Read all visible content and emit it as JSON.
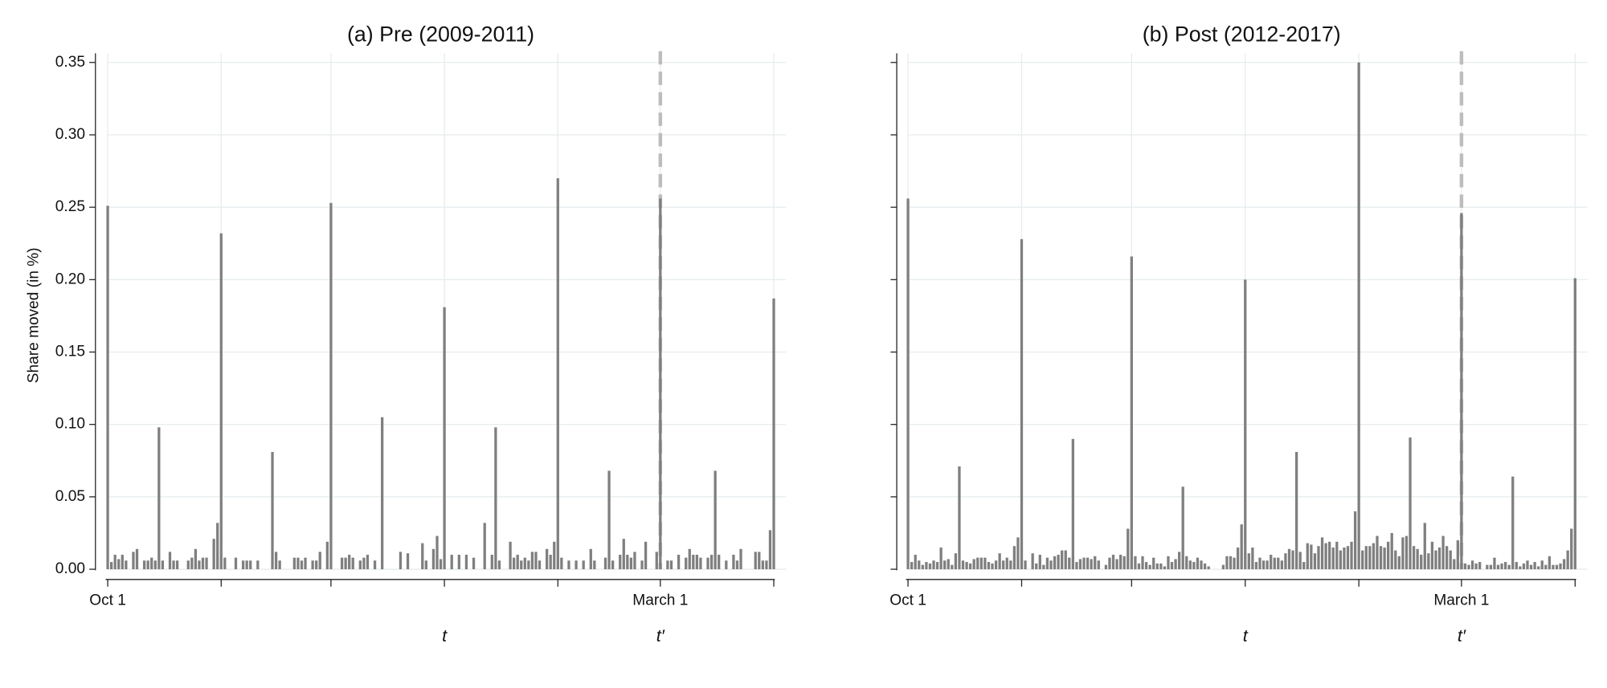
{
  "chart_data": [
    {
      "type": "bar",
      "title": "(a) Pre (2009-2011)",
      "y_label": "Share moved (in %)",
      "color": "#7f7f7f",
      "grid": true,
      "x": [
        0,
        1,
        2,
        3,
        4,
        5,
        6,
        7,
        8,
        9,
        10,
        11,
        12,
        13,
        14,
        15,
        16,
        17,
        18,
        19,
        20,
        21,
        22,
        23,
        24,
        25,
        26,
        27,
        28,
        29,
        30,
        31,
        32,
        33,
        34,
        35,
        36,
        37,
        38,
        39,
        40,
        41,
        42,
        43,
        44,
        45,
        46,
        47,
        48,
        49,
        50,
        51,
        52,
        53,
        54,
        55,
        56,
        57,
        58,
        59,
        60,
        61,
        62,
        63,
        64,
        65,
        66,
        67,
        68,
        69,
        70,
        71,
        72,
        73,
        74,
        75,
        76,
        77,
        78,
        79,
        80,
        81,
        82,
        83,
        84,
        85,
        86,
        87,
        88,
        89,
        90,
        91,
        92,
        93,
        94,
        95,
        96,
        97,
        98,
        99,
        100,
        101,
        102,
        103,
        104,
        105,
        106,
        107,
        108,
        109,
        110,
        111,
        112,
        113,
        114,
        115,
        116,
        117,
        118,
        119,
        120,
        121,
        122,
        123,
        124,
        125,
        126,
        127,
        128,
        129,
        130,
        131,
        132,
        133,
        134,
        135,
        136,
        137,
        138,
        139,
        140,
        141,
        142,
        143,
        144,
        145,
        146,
        147,
        148,
        149,
        150,
        151,
        152,
        153,
        154,
        155,
        156,
        157,
        158,
        159,
        160,
        161,
        162,
        163,
        164,
        165,
        166,
        167,
        168,
        169,
        170,
        171,
        172,
        173,
        174,
        175,
        176,
        177,
        178,
        179,
        180,
        181,
        182
      ],
      "values": [
        0.251,
        0.005,
        0.01,
        0.007,
        0.01,
        0.006,
        0,
        0.012,
        0.014,
        0,
        0.006,
        0.006,
        0.008,
        0.006,
        0.098,
        0.006,
        0,
        0.012,
        0.006,
        0.006,
        0,
        0,
        0.006,
        0.008,
        0.014,
        0.006,
        0.008,
        0.008,
        0,
        0.021,
        0.032,
        0.232,
        0.008,
        0,
        0,
        0.008,
        0,
        0.006,
        0.006,
        0.006,
        0,
        0.006,
        0,
        0,
        0,
        0.081,
        0.012,
        0.006,
        0,
        0,
        0,
        0.008,
        0.008,
        0.006,
        0.008,
        0,
        0.006,
        0.006,
        0.012,
        0,
        0.019,
        0.253,
        0,
        0,
        0.008,
        0.008,
        0.01,
        0.008,
        0,
        0.006,
        0.008,
        0.01,
        0,
        0.006,
        0,
        0.105,
        0,
        0,
        0,
        0,
        0.012,
        0,
        0.011,
        0,
        0,
        0,
        0.018,
        0.006,
        0,
        0.014,
        0.023,
        0.007,
        0.181,
        0,
        0.01,
        0,
        0.01,
        0,
        0.01,
        0,
        0.008,
        0,
        0,
        0.032,
        0,
        0.01,
        0.098,
        0.006,
        0,
        0,
        0.019,
        0.008,
        0.01,
        0.006,
        0.008,
        0.006,
        0.012,
        0.012,
        0.006,
        0,
        0.014,
        0.01,
        0.019,
        0.27,
        0.008,
        0,
        0.006,
        0,
        0.006,
        0,
        0.006,
        0,
        0.014,
        0.006,
        0,
        0,
        0.008,
        0.068,
        0.006,
        0,
        0.01,
        0.021,
        0.01,
        0.008,
        0.012,
        0,
        0.006,
        0.019,
        0,
        0,
        0.012,
        0.256,
        0,
        0.006,
        0.006,
        0,
        0.01,
        0,
        0.008,
        0.014,
        0.01,
        0.01,
        0.008,
        0,
        0.008,
        0.01,
        0.068,
        0.01,
        0,
        0.006,
        0,
        0.01,
        0.006,
        0.014,
        0,
        0,
        0,
        0.012,
        0.012,
        0.006,
        0.006,
        0.027,
        0.187
      ],
      "xlim": [
        0,
        182
      ],
      "xticks": [
        {
          "value": 0,
          "label": "Oct 1"
        },
        {
          "value": 31,
          "label": null
        },
        {
          "value": 61,
          "label": null
        },
        {
          "value": 92,
          "label": null
        },
        {
          "value": 123,
          "label": null
        },
        {
          "value": 151,
          "label": "March 1"
        },
        {
          "value": 182,
          "label": null
        }
      ],
      "ylim": [
        0,
        0.35
      ],
      "yticks": [
        {
          "value": 0,
          "label": "0.00"
        },
        {
          "value": 0.05,
          "label": "0.05"
        },
        {
          "value": 0.1,
          "label": "0.10"
        },
        {
          "value": 0.15,
          "label": "0.15"
        },
        {
          "value": 0.2,
          "label": "0.20"
        },
        {
          "value": 0.25,
          "label": "0.25"
        },
        {
          "value": 0.3,
          "label": "0.30"
        },
        {
          "value": 0.35,
          "label": "0.35"
        }
      ],
      "annotations": [
        {
          "text": "t",
          "x": 92
        },
        {
          "text": "t′",
          "x": 151
        }
      ],
      "vline_x": 151
    },
    {
      "type": "bar",
      "title": "(b) Post (2012-2017)",
      "color": "#7f7f7f",
      "grid": true,
      "x": [
        0,
        1,
        2,
        3,
        4,
        5,
        6,
        7,
        8,
        9,
        10,
        11,
        12,
        13,
        14,
        15,
        16,
        17,
        18,
        19,
        20,
        21,
        22,
        23,
        24,
        25,
        26,
        27,
        28,
        29,
        30,
        31,
        32,
        33,
        34,
        35,
        36,
        37,
        38,
        39,
        40,
        41,
        42,
        43,
        44,
        45,
        46,
        47,
        48,
        49,
        50,
        51,
        52,
        53,
        54,
        55,
        56,
        57,
        58,
        59,
        60,
        61,
        62,
        63,
        64,
        65,
        66,
        67,
        68,
        69,
        70,
        71,
        72,
        73,
        74,
        75,
        76,
        77,
        78,
        79,
        80,
        81,
        82,
        83,
        84,
        85,
        86,
        87,
        88,
        89,
        90,
        91,
        92,
        93,
        94,
        95,
        96,
        97,
        98,
        99,
        100,
        101,
        102,
        103,
        104,
        105,
        106,
        107,
        108,
        109,
        110,
        111,
        112,
        113,
        114,
        115,
        116,
        117,
        118,
        119,
        120,
        121,
        122,
        123,
        124,
        125,
        126,
        127,
        128,
        129,
        130,
        131,
        132,
        133,
        134,
        135,
        136,
        137,
        138,
        139,
        140,
        141,
        142,
        143,
        144,
        145,
        146,
        147,
        148,
        149,
        150,
        151,
        152,
        153,
        154,
        155,
        156,
        157,
        158,
        159,
        160,
        161,
        162,
        163,
        164,
        165,
        166,
        167,
        168,
        169,
        170,
        171,
        172,
        173,
        174,
        175,
        176,
        177,
        178,
        179,
        180,
        181,
        182
      ],
      "values": [
        0.256,
        0.005,
        0.01,
        0.006,
        0.003,
        0.005,
        0.004,
        0.006,
        0.005,
        0.015,
        0.006,
        0.007,
        0.003,
        0.011,
        0.071,
        0.006,
        0.005,
        0.004,
        0.007,
        0.008,
        0.008,
        0.008,
        0.005,
        0.004,
        0.006,
        0.011,
        0.006,
        0.008,
        0.006,
        0.016,
        0.022,
        0.228,
        0.006,
        0,
        0.011,
        0.004,
        0.01,
        0.003,
        0.008,
        0.006,
        0.009,
        0.01,
        0.013,
        0.013,
        0.008,
        0.09,
        0.005,
        0.007,
        0.008,
        0.008,
        0.007,
        0.009,
        0.006,
        0,
        0.003,
        0.008,
        0.01,
        0.007,
        0.01,
        0.009,
        0.028,
        0.216,
        0.009,
        0.004,
        0.009,
        0.005,
        0.003,
        0.008,
        0.004,
        0.004,
        0.002,
        0.009,
        0.005,
        0.007,
        0.012,
        0.057,
        0.009,
        0.006,
        0.005,
        0.008,
        0.006,
        0.004,
        0.002,
        0,
        0,
        0,
        0.003,
        0.009,
        0.009,
        0.008,
        0.015,
        0.031,
        0.2,
        0.011,
        0.015,
        0.005,
        0.008,
        0.006,
        0.006,
        0.01,
        0.008,
        0.008,
        0.006,
        0.011,
        0.014,
        0.013,
        0.081,
        0.012,
        0.005,
        0.018,
        0.017,
        0.011,
        0.016,
        0.022,
        0.018,
        0.019,
        0.015,
        0.019,
        0.013,
        0.015,
        0.016,
        0.019,
        0.04,
        0.35,
        0.013,
        0.016,
        0.016,
        0.018,
        0.023,
        0.016,
        0.015,
        0.019,
        0.025,
        0.013,
        0.009,
        0.022,
        0.023,
        0.091,
        0.016,
        0.014,
        0.01,
        0.032,
        0.011,
        0.019,
        0.013,
        0.015,
        0.023,
        0.016,
        0.013,
        0.007,
        0.02,
        0.246,
        0.004,
        0.003,
        0.006,
        0.004,
        0.005,
        0,
        0.003,
        0.003,
        0.008,
        0.003,
        0.004,
        0.005,
        0.003,
        0.064,
        0.005,
        0.002,
        0.004,
        0.006,
        0.003,
        0.005,
        0.002,
        0.006,
        0.003,
        0.009,
        0.003,
        0.003,
        0.004,
        0.007,
        0.013,
        0.028,
        0.201
      ],
      "xlim": [
        0,
        182
      ],
      "xticks": [
        {
          "value": 0,
          "label": "Oct 1"
        },
        {
          "value": 31,
          "label": null
        },
        {
          "value": 61,
          "label": null
        },
        {
          "value": 92,
          "label": null
        },
        {
          "value": 123,
          "label": null
        },
        {
          "value": 151,
          "label": "March 1"
        },
        {
          "value": 182,
          "label": null
        }
      ],
      "ylim": [
        0,
        0.35
      ],
      "yticks": [
        {
          "value": 0,
          "label": null
        },
        {
          "value": 0.05,
          "label": null
        },
        {
          "value": 0.1,
          "label": null
        },
        {
          "value": 0.15,
          "label": null
        },
        {
          "value": 0.2,
          "label": null
        },
        {
          "value": 0.25,
          "label": null
        },
        {
          "value": 0.3,
          "label": null
        },
        {
          "value": 0.35,
          "label": null
        }
      ],
      "annotations": [
        {
          "text": "t",
          "x": 92
        },
        {
          "text": "t′",
          "x": 151
        }
      ],
      "vline_x": 151
    }
  ]
}
